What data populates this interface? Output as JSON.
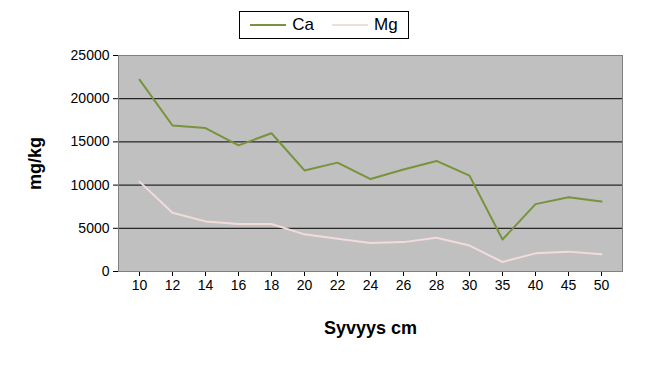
{
  "chart_data": {
    "type": "line",
    "x_label": "Syvyys cm",
    "y_label": "mg/kg",
    "categories": [
      10,
      12,
      14,
      16,
      18,
      20,
      22,
      24,
      26,
      28,
      30,
      35,
      40,
      45,
      50
    ],
    "series": [
      {
        "name": "Ca",
        "color": "#77933c",
        "values": [
          22200,
          16900,
          16600,
          14600,
          16000,
          11700,
          12600,
          10700,
          11800,
          12800,
          11100,
          3700,
          7800,
          8600,
          8100
        ]
      },
      {
        "name": "Mg",
        "color": "#f2dcdb",
        "values": [
          10400,
          6800,
          5800,
          5500,
          5500,
          4300,
          3800,
          3300,
          3400,
          3900,
          3000,
          1100,
          2100,
          2300,
          2000
        ]
      }
    ],
    "ylim": [
      0,
      25000
    ],
    "yticks": [
      0,
      5000,
      10000,
      15000,
      20000,
      25000
    ],
    "grid": true,
    "legend": "top"
  }
}
